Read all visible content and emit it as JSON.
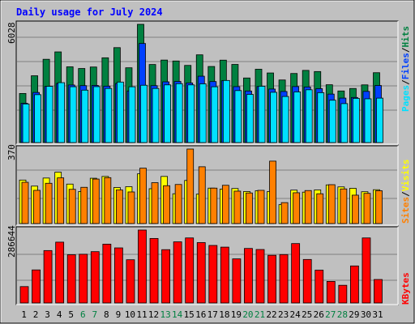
{
  "title": "Daily usage for July 2024",
  "colors": {
    "background": "#c0c0c0",
    "title": "#0000ff",
    "hits": "#008040",
    "files": "#0040ff",
    "pages": "#00e0ff",
    "visits": "#ffff00",
    "sites": "#ff8000",
    "kbytes": "#ff0000",
    "weekend_day": "#008040",
    "weekday": "#000000"
  },
  "labels": {
    "hits": "Hits",
    "files": "Files",
    "pages": "Pages",
    "visits": "Visits",
    "sites": "Sites",
    "kbytes": "KBytes",
    "separator": "/"
  },
  "chart_data": {
    "type": "bar",
    "title": "Daily usage for July 2024",
    "categories": [
      "1",
      "2",
      "3",
      "4",
      "5",
      "6",
      "7",
      "8",
      "9",
      "10",
      "11",
      "12",
      "13",
      "14",
      "15",
      "16",
      "17",
      "18",
      "19",
      "20",
      "21",
      "22",
      "23",
      "24",
      "25",
      "26",
      "27",
      "28",
      "29",
      "30",
      "31"
    ],
    "weekend_categories": [
      "6",
      "7",
      "13",
      "14",
      "20",
      "21",
      "27",
      "28"
    ],
    "panels": [
      {
        "name": "hits-files-pages",
        "ymax_label": "6028",
        "ymax": 6028,
        "series": [
          {
            "name": "Hits",
            "values": [
              2502,
              3405,
              4245,
              4622,
              3861,
              3775,
              3851,
              4321,
              4839,
              3812,
              6028,
              3979,
              4205,
              4158,
              3933,
              4472,
              3878,
              4201,
              3983,
              3292,
              3738,
              3548,
              3190,
              3521,
              3679,
              3620,
              2947,
              2630,
              2757,
              2941,
              3561
            ]
          },
          {
            "name": "Files",
            "values": [
              2004,
              2554,
              2861,
              3014,
              2934,
              2902,
              2914,
              2876,
              3011,
              2629,
              5051,
              2901,
              3096,
              3116,
              3040,
              3383,
              3109,
              3152,
              2850,
              2628,
              2856,
              2728,
              2603,
              2854,
              2834,
              2749,
              2471,
              2267,
              2299,
              2608,
              2908
            ]
          },
          {
            "name": "Pages",
            "values": [
              1968,
              2442,
              2867,
              3053,
              2846,
              2672,
              2851,
              2759,
              3084,
              2844,
              2922,
              2759,
              2941,
              3003,
              2941,
              2994,
              2844,
              3166,
              2650,
              2456,
              2871,
              2563,
              2349,
              2582,
              2691,
              2544,
              2159,
              1986,
              2253,
              2231,
              2266
            ]
          }
        ]
      },
      {
        "name": "visits-sites",
        "ymax_label": "370",
        "ymax": 370,
        "series": [
          {
            "name": "Visits",
            "values": [
              216,
              186,
              226,
              255,
              196,
              159,
              225,
              234,
              179,
              183,
              247,
              173,
              234,
              148,
              214,
              146,
              176,
              171,
              174,
              159,
              163,
              159,
              94,
              166,
              156,
              167,
              192,
              182,
              175,
              158,
              168
            ]
          },
          {
            "name": "Sites",
            "values": [
              205,
              165,
              200,
              227,
              170,
              180,
              221,
              228,
              167,
              157,
              275,
              203,
              188,
              194,
              370,
              282,
              176,
              190,
              161,
              152,
              165,
              310,
              104,
              153,
              164,
              148,
              193,
              172,
              141,
              150,
              163
            ]
          }
        ]
      },
      {
        "name": "kbytes",
        "ymax_label": "286644",
        "ymax": 286644,
        "series": [
          {
            "name": "KBytes",
            "values": [
              64320,
              129870,
              205980,
              239100,
              189640,
              191510,
              201670,
              231180,
              216480,
              169840,
              286644,
              253540,
              209540,
              240290,
              255640,
              237380,
              226070,
              219470,
              173330,
              214310,
              210140,
              187360,
              190210,
              233520,
              170960,
              128920,
              84690,
              69470,
              145490,
              255640,
              92240
            ]
          }
        ]
      }
    ]
  }
}
